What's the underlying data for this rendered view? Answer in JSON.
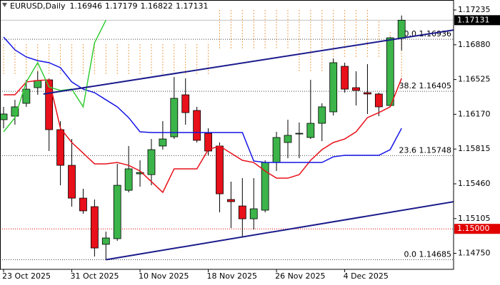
{
  "chart_data": {
    "type": "candlestick",
    "title": "EURUSD,Daily",
    "categories": [
      "23 Oct 2025",
      null,
      null,
      null,
      null,
      null,
      "31 Oct 2025",
      null,
      null,
      null,
      null,
      null,
      "10 Nov 2025",
      null,
      null,
      null,
      null,
      null,
      "18 Nov 2025",
      null,
      null,
      null,
      null,
      null,
      "26 Nov 2025",
      null,
      null,
      null,
      null,
      null,
      "4 Dec 2025",
      null,
      null,
      null,
      null,
      null
    ],
    "up_color": "#3cb44a",
    "down_color": "#e8101a",
    "ohlc": {
      "open": [
        1.16115,
        1.16151,
        1.16282,
        1.16442,
        1.16522,
        1.16013,
        1.15649,
        1.15314,
        1.15227,
        1.14842,
        1.149,
        1.15394,
        1.15562,
        1.15554,
        1.15846,
        1.1594,
        1.16369,
        1.16209,
        1.15976,
        1.15846,
        1.153,
        1.15234,
        1.15103,
        1.15191,
        1.15678,
        1.15882,
        1.15969,
        1.15933,
        1.16078,
        1.16195,
        1.1666,
        1.16442,
        1.16391,
        1.16377,
        1.1626,
        1.16946
      ],
      "high": [
        1.16246,
        1.16318,
        1.16522,
        1.16609,
        1.16537,
        1.161,
        1.15918,
        1.15409,
        1.153,
        1.14972,
        1.15664,
        1.15846,
        1.157,
        1.15918,
        1.161,
        1.16551,
        1.16537,
        1.16246,
        1.16027,
        1.15882,
        1.15482,
        1.15518,
        1.15518,
        1.157,
        1.15991,
        1.16115,
        1.16086,
        1.16522,
        1.16282,
        1.1674,
        1.16697,
        1.16609,
        1.16682,
        1.16391,
        1.16959,
        1.17179
      ],
      "low": [
        1.16027,
        1.16064,
        1.16246,
        1.16369,
        1.15795,
        1.15445,
        1.15227,
        1.15154,
        1.14718,
        1.14685,
        1.14878,
        1.15373,
        1.15431,
        1.15445,
        1.15809,
        1.15918,
        1.16064,
        1.15882,
        1.15751,
        1.15169,
        1.15009,
        1.14914,
        1.14994,
        1.15169,
        1.15591,
        1.15722,
        1.15722,
        1.15918,
        1.15896,
        1.16158,
        1.16391,
        1.1626,
        1.16173,
        1.16151,
        1.16246,
        1.16822
      ],
      "close": [
        1.16173,
        1.16246,
        1.16427,
        1.16515,
        1.16013,
        1.15649,
        1.15314,
        1.15184,
        1.14805,
        1.14907,
        1.15445,
        1.15613,
        1.15576,
        1.15809,
        1.15918,
        1.16333,
        1.16187,
        1.15904,
        1.15795,
        1.15358,
        1.15278,
        1.15103,
        1.15205,
        1.15678,
        1.15933,
        1.15955,
        1.15976,
        1.16078,
        1.16246,
        1.16697,
        1.16427,
        1.16413,
        1.16377,
        1.16246,
        1.16951,
        1.17131
      ]
    },
    "cloud": {
      "color": "#f0a050",
      "upper": [
        1.16886,
        1.16886,
        1.16886,
        1.16886,
        1.16886,
        1.16886,
        1.16886,
        1.16886,
        1.16886,
        1.16886,
        1.16886,
        1.16886,
        1.16886,
        1.16886,
        1.16886,
        1.16886,
        1.16886,
        1.16886,
        1.16886,
        1.17235,
        1.17235,
        1.17235,
        1.17235,
        1.17235,
        1.17235,
        1.17235,
        1.17235,
        1.17235,
        1.17235,
        1.17235,
        1.17235,
        1.17235,
        1.17235,
        1.17119,
        1.17009,
        1.16973
      ],
      "lower": [
        1.16573,
        1.16573,
        1.16573,
        1.16573,
        1.16573,
        1.16573,
        1.16573,
        1.16573,
        1.16573,
        1.16573,
        1.16573,
        1.16573,
        1.16573,
        1.16573,
        1.16573,
        1.16573,
        1.16573,
        1.16573,
        1.16573,
        1.16828,
        1.16828,
        1.16828,
        1.16828,
        1.16828,
        1.16828,
        1.16828,
        1.16609,
        1.16609,
        1.16609,
        1.16609,
        1.16755,
        1.16755,
        1.16755,
        1.16755,
        1.16646,
        1.16537
      ]
    },
    "lines": [
      {
        "color": "#e8101a",
        "values": [
          1.16369,
          1.16369,
          1.165,
          1.16515,
          1.16522,
          1.16027,
          1.15882,
          1.15773,
          1.15664,
          1.15664,
          1.15678,
          1.15649,
          1.15591,
          1.15482,
          1.15373,
          1.15613,
          1.15613,
          1.15613,
          1.15809,
          1.15846,
          1.15773,
          1.157,
          1.15678,
          1.15591,
          1.15518,
          1.15518,
          1.15554,
          1.157,
          1.15809,
          1.15882,
          1.15918,
          1.15991,
          1.16136,
          1.16187,
          1.16246,
          1.16537
        ]
      },
      {
        "color": "#1414e6",
        "values": [
          1.16959,
          1.16828,
          1.16755,
          1.16718,
          1.16697,
          1.16646,
          1.165,
          1.16427,
          1.16391,
          1.16318,
          1.16246,
          1.16136,
          1.15991,
          1.15984,
          1.15984,
          1.15984,
          1.15984,
          1.15984,
          1.15984,
          1.15984,
          1.15984,
          1.15984,
          1.15693,
          1.15678,
          1.15678,
          1.15678,
          1.15678,
          1.15678,
          1.15678,
          1.15736,
          1.15751,
          1.15751,
          1.15751,
          1.15751,
          1.15809,
          1.16027
        ]
      },
      {
        "color": "#33cc33",
        "values": [
          1.15991,
          1.16136,
          1.165,
          1.16697,
          1.16449,
          1.16413,
          1.16427,
          1.16246,
          1.169,
          1.17131,
          null,
          null,
          null,
          null,
          null,
          null,
          null,
          null,
          null,
          null,
          null,
          null,
          null,
          null,
          null,
          null,
          null,
          null,
          null,
          null,
          null,
          null,
          null,
          null,
          null,
          null
        ]
      }
    ],
    "trendlines": [
      {
        "color": "#1a1a8c",
        "x": [
          3.5,
          39.6
        ],
        "y": [
          1.16377,
          1.17031
        ]
      },
      {
        "color": "#1a1a8c",
        "x": [
          9,
          39.6
        ],
        "y": [
          1.14685,
          1.15278
        ]
      }
    ],
    "fib_levels": [
      {
        "value": 1.16936,
        "label": "0.0 1.16936"
      },
      {
        "value": 1.16405,
        "label": "38.2 1.16405"
      },
      {
        "value": 1.15748,
        "label": "23.6 1.15748"
      },
      {
        "value": 1.14685,
        "label": "0.0 1.14685"
      }
    ],
    "price_lines": [
      {
        "value": 1.17131,
        "color": "#000000"
      },
      {
        "value": 1.15,
        "label": "1.15000",
        "color": "#e00000"
      }
    ],
    "ylim": [
      1.14587,
      1.17337
    ],
    "yticks": [
      1.17235,
      {
        "value": 1.1688,
        "label": "1.16880"
      },
      1.16525,
      {
        "value": 1.1617,
        "label": "1.16170"
      },
      1.15815,
      {
        "value": 1.1546,
        "label": "1.15460"
      },
      1.15105,
      {
        "value": 1.1475,
        "label": "1.14750"
      }
    ]
  }
}
